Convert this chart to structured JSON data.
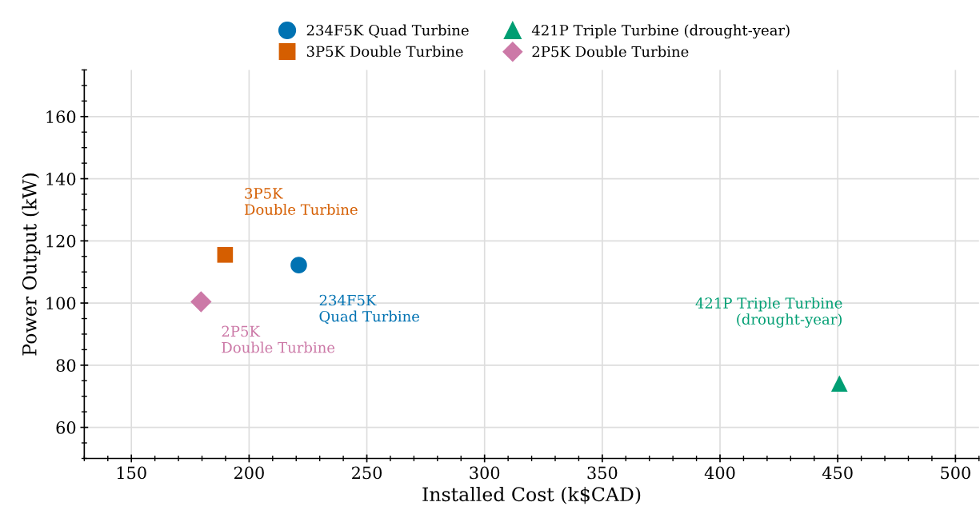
{
  "chart_data": {
    "type": "scatter",
    "xlabel": "Installed Cost (k$CAD)",
    "ylabel": "Power Output (kW)",
    "xlim": [
      130,
      510
    ],
    "ylim": [
      50,
      175
    ],
    "xticks": [
      150,
      200,
      250,
      300,
      350,
      400,
      450,
      500
    ],
    "yticks": [
      60,
      80,
      100,
      120,
      140,
      160
    ],
    "grid": true,
    "legend": "top",
    "series": [
      {
        "name": "234F5K Quad Turbine",
        "color": "#0072b2",
        "marker": "circle",
        "x": [
          221.1
        ],
        "values": [
          112.2
        ]
      },
      {
        "name": "3P5K Double Turbine",
        "color": "#d55e00",
        "marker": "square",
        "x": [
          189.8
        ],
        "values": [
          115.5
        ]
      },
      {
        "name": "421P Triple Turbine (drought-year)",
        "color": "#009e73",
        "marker": "triangle",
        "x": [
          450.7
        ],
        "values": [
          74.1
        ]
      },
      {
        "name": "2P5K Double Turbine",
        "color": "#cc79a7",
        "marker": "diamond",
        "x": [
          179.6
        ],
        "values": [
          100.4
        ]
      }
    ],
    "annotations": [
      "234F5K\nQuad Turbine",
      "3P5K\nDouble Turbine",
      "421P Triple Turbine\n(drought-year)",
      "2P5K\nDouble Turbine"
    ]
  }
}
